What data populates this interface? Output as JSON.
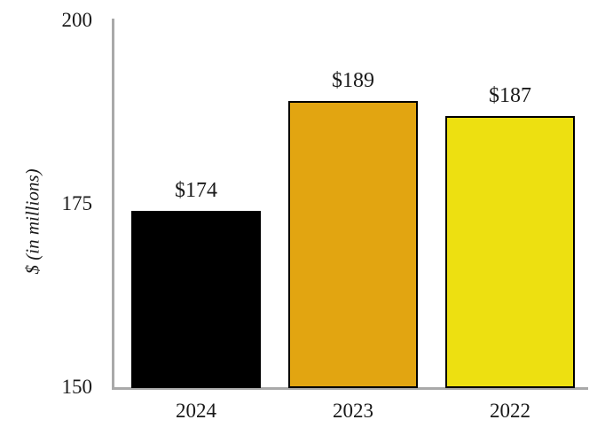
{
  "chart_data": {
    "type": "bar",
    "categories": [
      "2024",
      "2023",
      "2022"
    ],
    "values": [
      174,
      189,
      187
    ],
    "value_labels": [
      "$174",
      "$189",
      "$187"
    ],
    "bar_colors": [
      "#000000",
      "#e2a511",
      "#ede011"
    ],
    "bar_border_color": "#000000",
    "title": "",
    "xlabel": "",
    "ylabel": "$ (in millions)",
    "yticks": [
      "200",
      "175",
      "150"
    ],
    "ylim": [
      150,
      200
    ],
    "axis_color": "#a9a9a9",
    "grid": false,
    "legend": false
  }
}
